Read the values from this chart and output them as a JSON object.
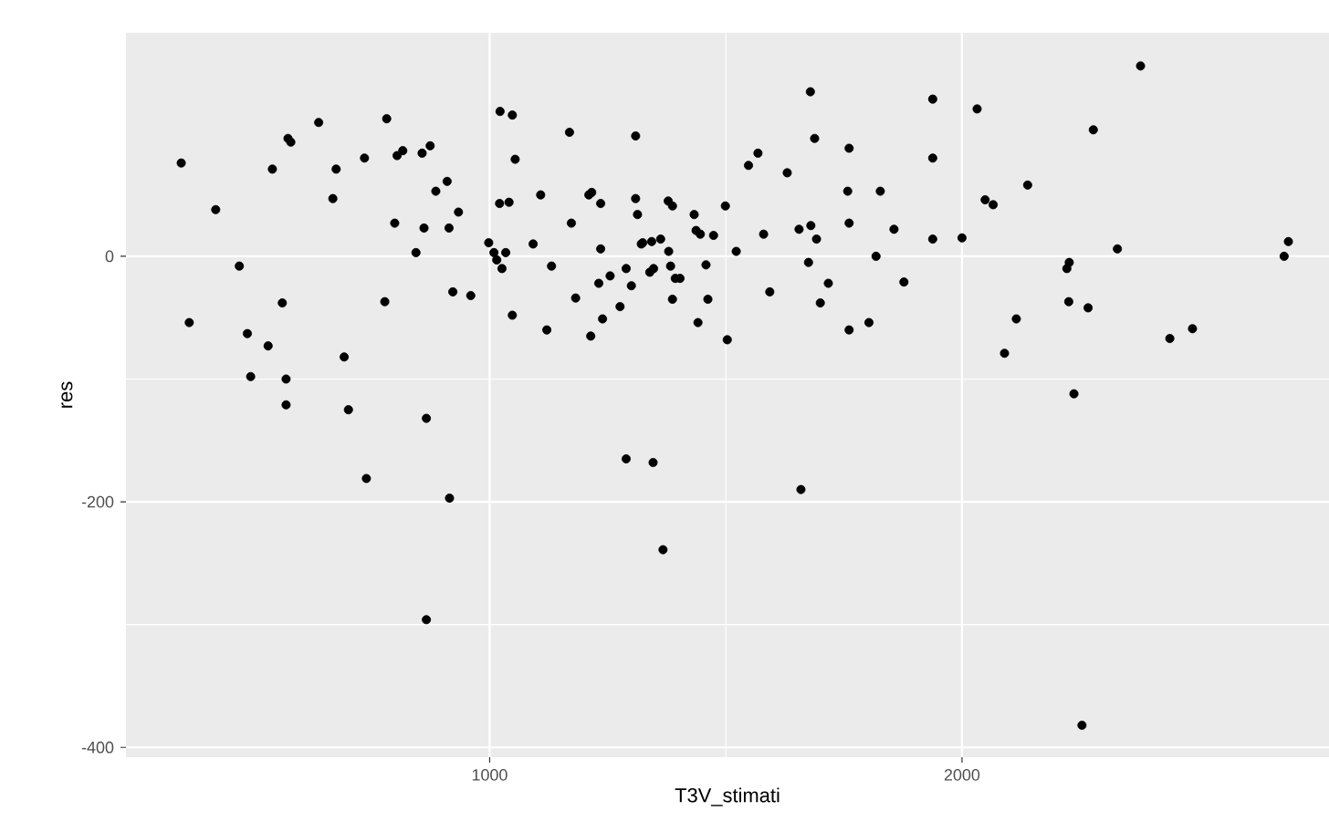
{
  "chart_data": {
    "type": "scatter",
    "xlabel": "T3V_stimati",
    "ylabel": "res",
    "color": "#000000",
    "grid": true,
    "xlim": [
      230,
      2777
    ],
    "ylim": [
      -408,
      182
    ],
    "xticks": [
      1000,
      2000
    ],
    "yticks": [
      -400,
      -200,
      0
    ],
    "x": [
      347,
      420,
      470,
      364,
      487,
      531,
      494,
      569,
      561,
      540,
      573,
      579,
      638,
      675,
      668,
      692,
      735,
      782,
      778,
      804,
      816,
      857,
      874,
      799,
      886,
      910,
      934,
      861,
      914,
      844,
      922,
      960,
      998,
      569,
      701,
      866,
      739,
      915,
      866,
      1022,
      1048,
      1169,
      1309,
      1054,
      1021,
      1041,
      1009,
      1015,
      1026,
      1034,
      1048,
      1092,
      1108,
      1131,
      1121,
      1173,
      1182,
      1210,
      1216,
      1235,
      1235,
      1231,
      1239,
      1214,
      1255,
      1289,
      1276,
      1300,
      1309,
      1313,
      1321,
      1324,
      1343,
      1362,
      1339,
      1347,
      1378,
      1387,
      1379,
      1383,
      1393,
      1403,
      1387,
      1433,
      1437,
      1446,
      1474,
      1458,
      1462,
      1441,
      1499,
      1522,
      1503,
      1548,
      1568,
      1630,
      1580,
      1593,
      1679,
      1688,
      1761,
      1758,
      1827,
      1680,
      1655,
      1692,
      1761,
      1856,
      1675,
      1818,
      1717,
      1700,
      1877,
      1761,
      1803,
      1289,
      1346,
      1367,
      1659,
      2378,
      1938,
      2032,
      2278,
      1938,
      2139,
      2049,
      2066,
      1938,
      2000,
      2329,
      2691,
      2682,
      2227,
      2222,
      2226,
      2267,
      2115,
      2090,
      2440,
      2488,
      2237,
      2254
    ],
    "values": [
      76,
      38,
      -8,
      -54,
      -63,
      -73,
      -98,
      -100,
      -38,
      71,
      96,
      93,
      109,
      71,
      47,
      -82,
      80,
      112,
      -37,
      82,
      86,
      84,
      90,
      27,
      53,
      61,
      36,
      23,
      23,
      3,
      -29,
      -32,
      11,
      -121,
      -125,
      -132,
      -181,
      -197,
      -296,
      118,
      115,
      101,
      98,
      79,
      43,
      44,
      3,
      -3,
      -10,
      3,
      -48,
      10,
      50,
      -8,
      -60,
      27,
      -34,
      50,
      52,
      43,
      6,
      -22,
      -51,
      -65,
      -16,
      -10,
      -41,
      -24,
      47,
      34,
      10,
      11,
      12,
      14,
      -13,
      -10,
      45,
      41,
      4,
      -8,
      -18,
      -18,
      -35,
      34,
      21,
      18,
      17,
      -7,
      -35,
      -54,
      41,
      4,
      -68,
      74,
      84,
      68,
      18,
      -29,
      134,
      96,
      88,
      53,
      53,
      25,
      22,
      14,
      27,
      22,
      -5,
      0,
      -22,
      -38,
      -21,
      -60,
      -54,
      -165,
      -168,
      -239,
      -190,
      155,
      128,
      120,
      103,
      80,
      58,
      46,
      42,
      14,
      15,
      6,
      12,
      0,
      -5,
      -10,
      -37,
      -42,
      -51,
      -79,
      -67,
      -59,
      -112,
      -382
    ]
  }
}
